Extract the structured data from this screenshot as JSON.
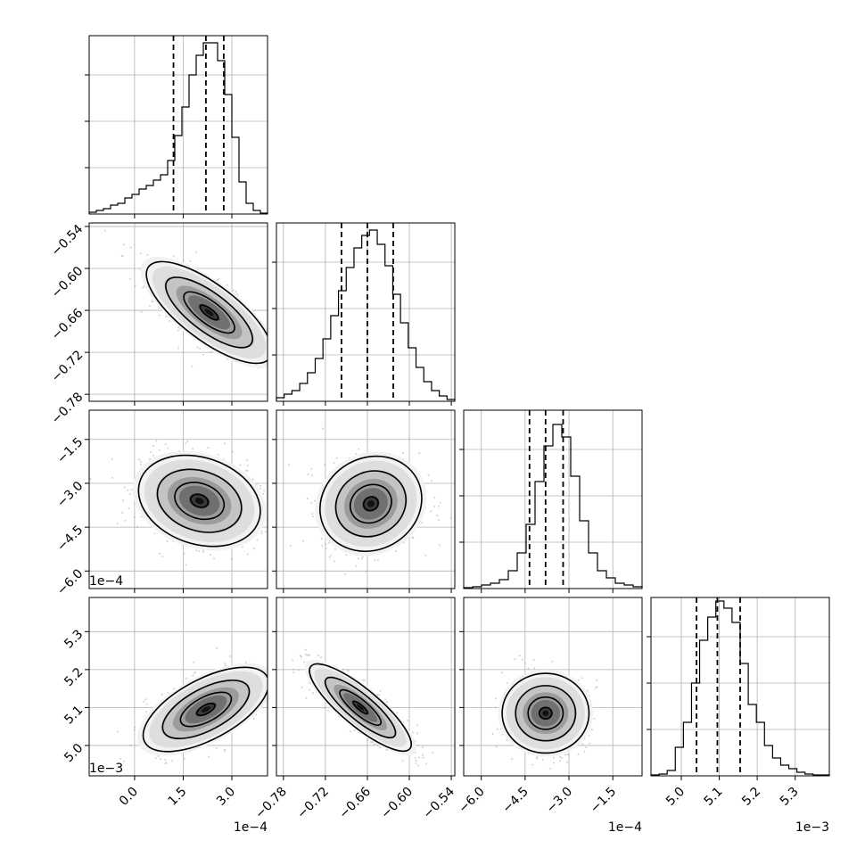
{
  "chart_data": {
    "type": "corner",
    "grid": true,
    "params": [
      {
        "ticks": [
          0.0,
          1.5,
          3.0
        ],
        "tick_labels": [
          "0.0",
          "1.5",
          "3.0"
        ],
        "range": [
          -1.4,
          4.1
        ],
        "offset_label": "1e−4",
        "quantiles": [
          1.2,
          2.2,
          2.75
        ],
        "hist": [
          0.01,
          0.02,
          0.03,
          0.05,
          0.06,
          0.09,
          0.11,
          0.14,
          0.16,
          0.19,
          0.22,
          0.3,
          0.44,
          0.6,
          0.78,
          0.89,
          0.96,
          0.96,
          0.86,
          0.67,
          0.43,
          0.18,
          0.06,
          0.02,
          0.005
        ]
      },
      {
        "ticks": [
          -0.78,
          -0.72,
          -0.66,
          -0.6,
          -0.54
        ],
        "tick_labels": [
          "−0.78",
          "−0.72",
          "−0.66",
          "−0.60",
          "−0.54"
        ],
        "range": [
          -0.79,
          -0.535
        ],
        "offset_label": "",
        "quantiles": [
          -0.697,
          -0.66,
          -0.623
        ],
        "hist": [
          0.02,
          0.04,
          0.06,
          0.1,
          0.16,
          0.24,
          0.35,
          0.48,
          0.62,
          0.75,
          0.86,
          0.93,
          0.96,
          0.88,
          0.76,
          0.6,
          0.44,
          0.3,
          0.19,
          0.11,
          0.06,
          0.03,
          0.01
        ]
      },
      {
        "ticks": [
          -6.0,
          -4.5,
          -3.0,
          -1.5
        ],
        "tick_labels": [
          "−6.0",
          "−4.5",
          "−3.0",
          "−1.5"
        ],
        "range": [
          -6.6,
          -0.5
        ],
        "offset_label": "1e−4",
        "quantiles": [
          -4.35,
          -3.8,
          -3.2
        ],
        "hist": [
          0.005,
          0.01,
          0.02,
          0.03,
          0.05,
          0.1,
          0.2,
          0.36,
          0.6,
          0.8,
          0.92,
          0.85,
          0.63,
          0.38,
          0.2,
          0.1,
          0.06,
          0.03,
          0.02,
          0.01
        ]
      },
      {
        "ticks": [
          5.0,
          5.1,
          5.2,
          5.3
        ],
        "tick_labels": [
          "5.0",
          "5.1",
          "5.2",
          "5.3"
        ],
        "range": [
          4.92,
          5.39
        ],
        "offset_label": "1e−3",
        "quantiles": [
          5.04,
          5.095,
          5.155
        ],
        "hist": [
          0.005,
          0.01,
          0.03,
          0.16,
          0.3,
          0.52,
          0.76,
          0.89,
          0.98,
          0.94,
          0.86,
          0.63,
          0.4,
          0.3,
          0.17,
          0.1,
          0.06,
          0.04,
          0.02,
          0.01,
          0.005,
          0.005
        ]
      }
    ],
    "pairs": [
      {
        "row": 1,
        "col": 0,
        "mean": [
          2.3,
          -0.663
        ],
        "cov": [
          [
            0.85,
            -0.024
          ],
          [
            -0.024,
            0.0012
          ]
        ],
        "cmap_max": 0.55
      },
      {
        "row": 2,
        "col": 0,
        "mean": [
          2.0,
          -3.6
        ],
        "cov": [
          [
            0.8,
            -0.15
          ],
          [
            -0.15,
            0.55
          ]
        ],
        "cmap_max": 0.6
      },
      {
        "row": 2,
        "col": 1,
        "mean": [
          -0.655,
          -3.7
        ],
        "cov": [
          [
            0.0012,
            0.003
          ],
          [
            0.003,
            0.6
          ]
        ],
        "cmap_max": 0.7
      },
      {
        "row": 3,
        "col": 0,
        "mean": [
          2.2,
          5.095
        ],
        "cov": [
          [
            0.85,
            0.03
          ],
          [
            0.03,
            0.0028
          ]
        ],
        "cmap_max": 0.6
      },
      {
        "row": 3,
        "col": 1,
        "mean": [
          -0.67,
          5.1
        ],
        "cov": [
          [
            0.0012,
            -0.0016
          ],
          [
            -0.0016,
            0.003
          ]
        ],
        "cmap_max": 0.8
      },
      {
        "row": 3,
        "col": 2,
        "mean": [
          -3.8,
          5.085
        ],
        "cov": [
          [
            0.5,
            0.0
          ],
          [
            0.0,
            0.0025
          ]
        ],
        "cmap_max": 0.85
      }
    ]
  }
}
